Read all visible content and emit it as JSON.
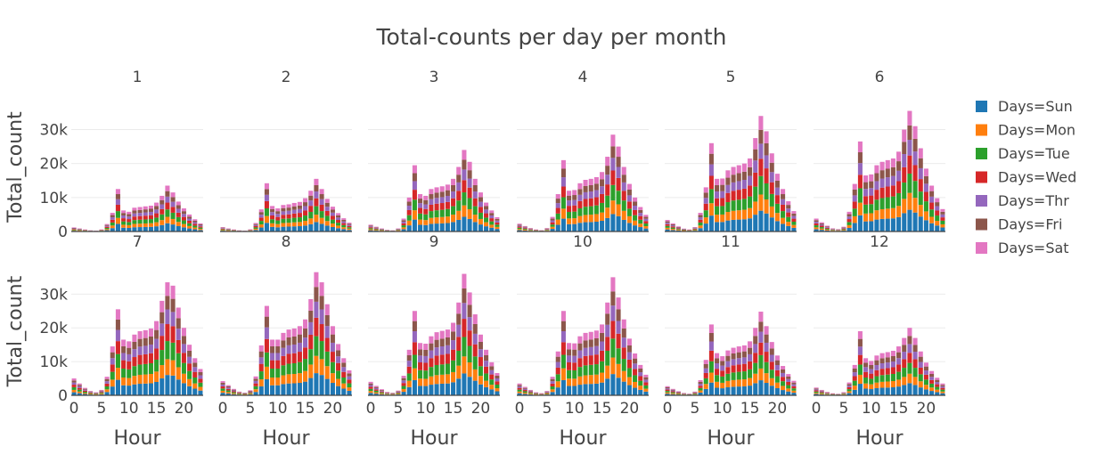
{
  "chart_data": {
    "type": "bar",
    "barmode": "stack",
    "title": "Total-counts per day per month",
    "xlabel": "Hour",
    "ylabel": "Total_count",
    "ylim": [
      0,
      38000
    ],
    "xlim": [
      -0.5,
      23.5
    ],
    "x_ticks": [
      0,
      5,
      10,
      15,
      20
    ],
    "x_tick_labels": [
      "0",
      "5",
      "10",
      "15",
      "20"
    ],
    "y_ticks": [
      0,
      10000,
      20000,
      30000
    ],
    "y_tick_labels": [
      "0",
      "10k",
      "20k",
      "30k"
    ],
    "grid": true,
    "legend_position": "right",
    "hours": [
      0,
      1,
      2,
      3,
      4,
      5,
      6,
      7,
      8,
      9,
      10,
      11,
      12,
      13,
      14,
      15,
      16,
      17,
      18,
      19,
      20,
      21,
      22,
      23
    ],
    "series": [
      {
        "name": "Days=Sun",
        "color": "#1f77b4"
      },
      {
        "name": "Days=Mon",
        "color": "#ff7f0e"
      },
      {
        "name": "Days=Tue",
        "color": "#2ca02c"
      },
      {
        "name": "Days=Wed",
        "color": "#d62728"
      },
      {
        "name": "Days=Thr",
        "color": "#9467bd"
      },
      {
        "name": "Days=Fri",
        "color": "#8c564b"
      },
      {
        "name": "Days=Sat",
        "color": "#e377c2"
      }
    ],
    "panels": [
      {
        "label": "1",
        "totals": [
          1200,
          900,
          600,
          350,
          250,
          600,
          2200,
          5500,
          12500,
          6200,
          5800,
          7000,
          7200,
          7400,
          7600,
          8500,
          10500,
          13500,
          11500,
          8800,
          6800,
          5000,
          3600,
          2400
        ]
      },
      {
        "label": "2",
        "totals": [
          1300,
          900,
          600,
          350,
          250,
          650,
          2500,
          6500,
          14200,
          7500,
          6800,
          7800,
          8000,
          8400,
          8700,
          9800,
          12000,
          15500,
          12500,
          9600,
          7300,
          5400,
          3900,
          2600
        ]
      },
      {
        "label": "3",
        "totals": [
          2000,
          1400,
          900,
          500,
          350,
          900,
          3800,
          10000,
          19500,
          11000,
          10500,
          12500,
          13000,
          13300,
          13800,
          15500,
          19000,
          24000,
          20500,
          15500,
          11500,
          8500,
          6200,
          4200
        ]
      },
      {
        "label": "4",
        "totals": [
          2300,
          1600,
          1000,
          600,
          400,
          1000,
          4300,
          11000,
          21000,
          12000,
          12200,
          14200,
          15200,
          15500,
          16000,
          17500,
          22000,
          28500,
          25000,
          19000,
          14000,
          10000,
          7200,
          4900
        ]
      },
      {
        "label": "5",
        "totals": [
          3400,
          2400,
          1500,
          850,
          600,
          1300,
          5500,
          13000,
          26000,
          15500,
          15600,
          18000,
          19000,
          19500,
          20000,
          21500,
          27500,
          34000,
          29500,
          23000,
          17000,
          12500,
          8900,
          6000
        ]
      },
      {
        "label": "6",
        "totals": [
          3800,
          2700,
          1700,
          950,
          700,
          1400,
          5800,
          14000,
          26500,
          16500,
          16800,
          19500,
          20500,
          21000,
          21500,
          23500,
          30000,
          35500,
          31000,
          24500,
          18500,
          13500,
          9800,
          6600
        ]
      },
      {
        "label": "7",
        "totals": [
          5000,
          3500,
          2200,
          1300,
          900,
          1600,
          5500,
          14500,
          25500,
          16500,
          16000,
          18000,
          19000,
          19300,
          19800,
          22000,
          28000,
          33500,
          32500,
          26000,
          20000,
          15000,
          11000,
          7800
        ]
      },
      {
        "label": "8",
        "totals": [
          4200,
          3000,
          1900,
          1100,
          800,
          1500,
          5600,
          14800,
          26500,
          16500,
          16500,
          18500,
          19500,
          19800,
          20500,
          22500,
          28500,
          36500,
          33500,
          27000,
          20500,
          15200,
          11000,
          7400
        ]
      },
      {
        "label": "9",
        "totals": [
          4000,
          2800,
          1800,
          1000,
          750,
          1400,
          5800,
          13500,
          25000,
          15500,
          15300,
          17500,
          18700,
          19100,
          19500,
          21500,
          27500,
          36000,
          30500,
          24000,
          18000,
          13500,
          9800,
          6600
        ]
      },
      {
        "label": "10",
        "totals": [
          3500,
          2500,
          1600,
          900,
          650,
          1300,
          5500,
          13000,
          25000,
          15500,
          15400,
          17500,
          18500,
          18800,
          19200,
          21000,
          27500,
          35000,
          29000,
          22500,
          16800,
          12400,
          9000,
          6100
        ]
      },
      {
        "label": "11",
        "totals": [
          2700,
          1900,
          1200,
          700,
          500,
          1100,
          4500,
          10500,
          21000,
          12500,
          11600,
          13300,
          14100,
          14500,
          14800,
          16000,
          20000,
          24800,
          20500,
          15800,
          11800,
          8700,
          6300,
          4300
        ]
      },
      {
        "label": "12",
        "totals": [
          2300,
          1600,
          1000,
          600,
          450,
          950,
          3800,
          9000,
          19000,
          11000,
          10200,
          11800,
          12500,
          12800,
          13200,
          14500,
          17000,
          20000,
          17000,
          13000,
          9700,
          7200,
          5200,
          3500
        ]
      }
    ]
  },
  "legend": {
    "items": [
      "Days=Sun",
      "Days=Mon",
      "Days=Tue",
      "Days=Wed",
      "Days=Thr",
      "Days=Fri",
      "Days=Sat"
    ]
  }
}
